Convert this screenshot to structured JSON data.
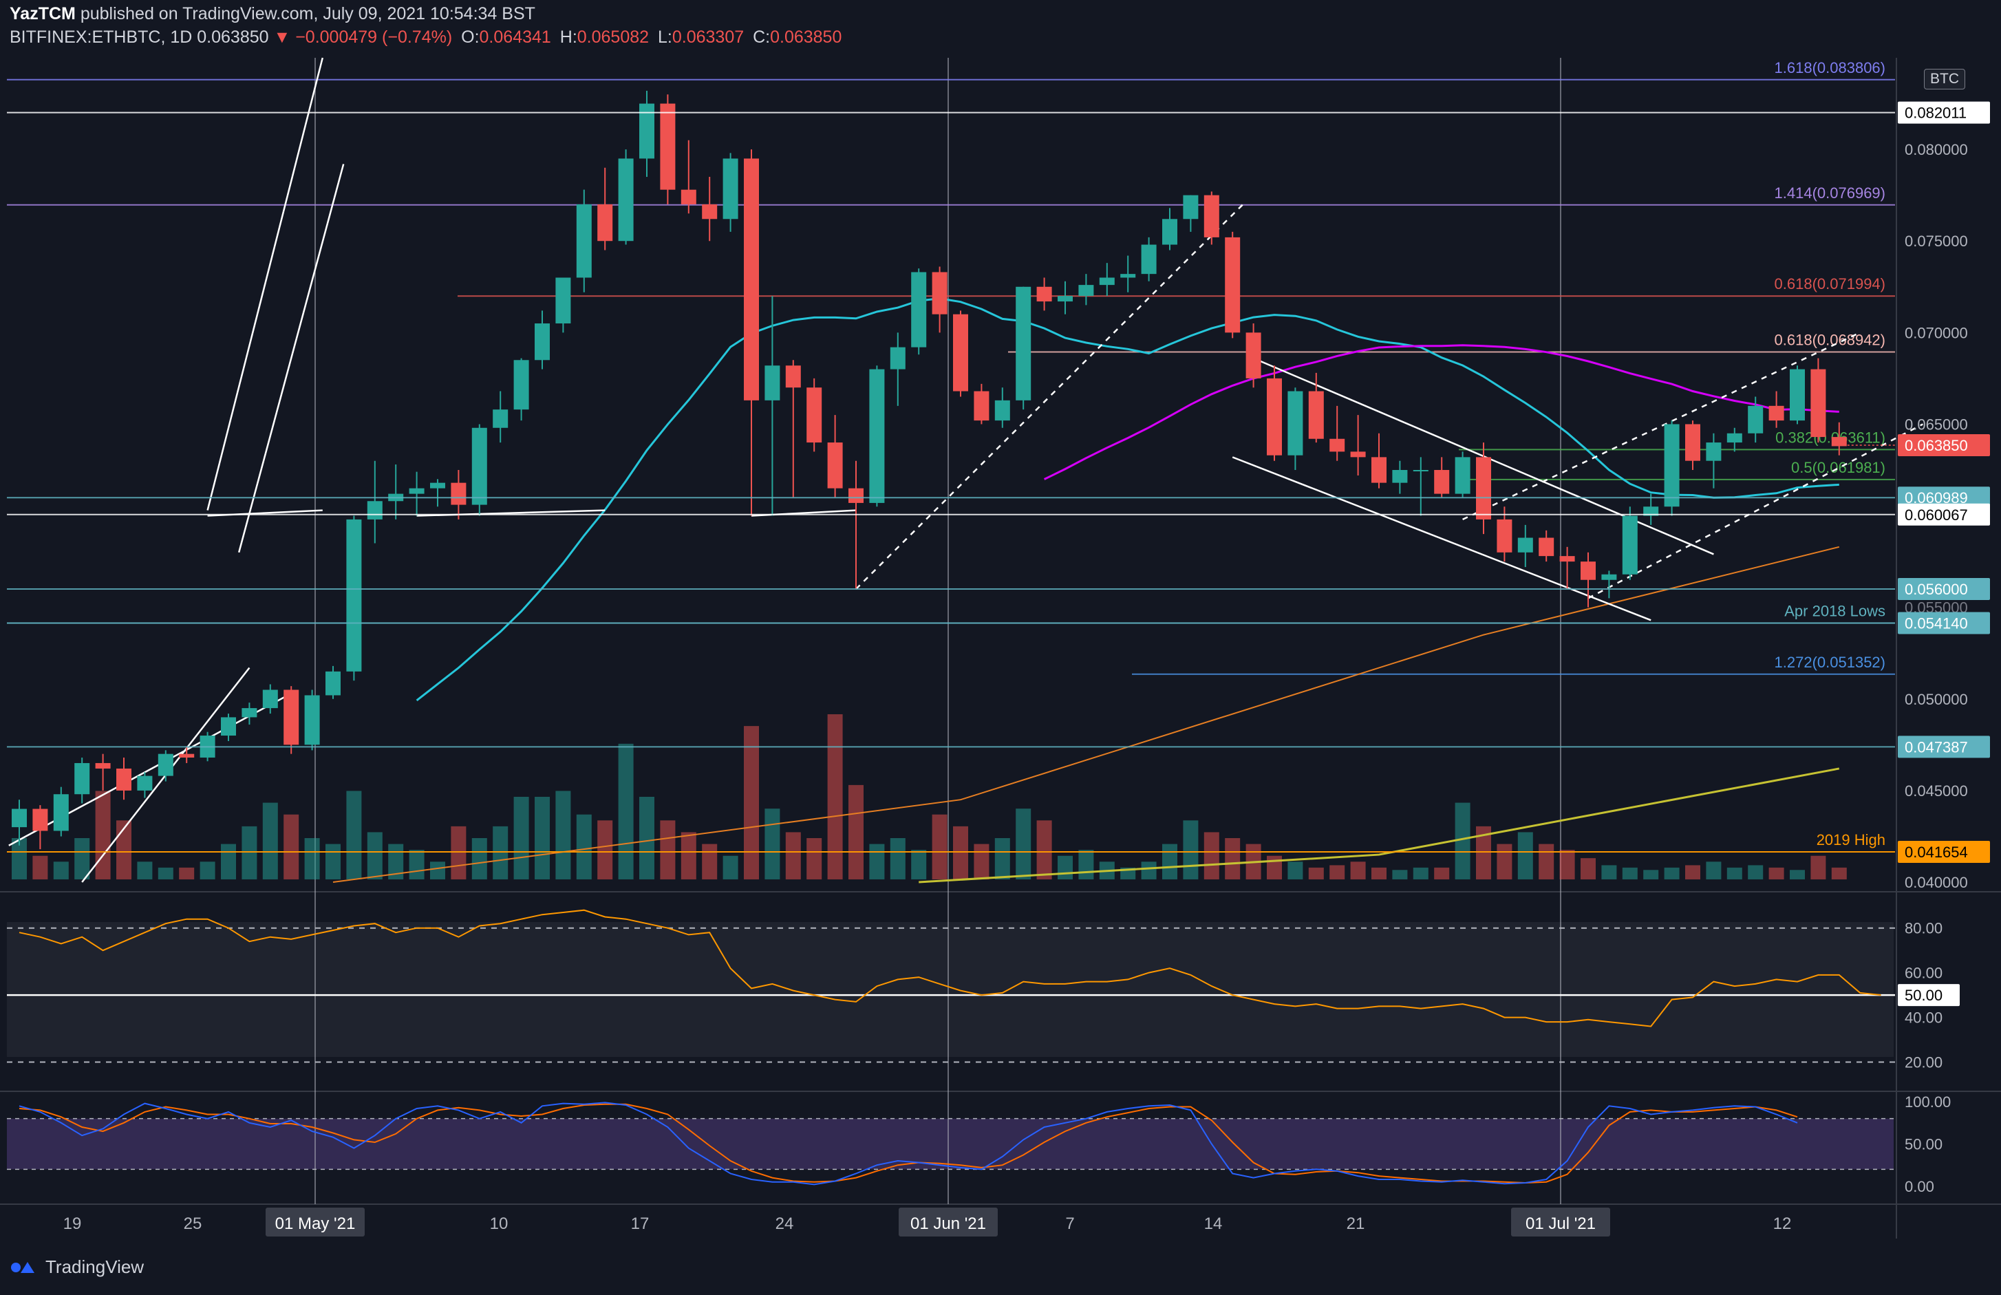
{
  "header": {
    "publisher_line": "YazTCM published on TradingView.com, July 09, 2021 10:54:34 BST",
    "author": "YazTCM",
    "published_rest": "published on TradingView.com, July 09, 2021 10:54:34 BST",
    "symbol": "BITFINEX:ETHBTC, 1D",
    "last": "0.063850",
    "change": "−0.000479 (−0.74%)",
    "o_label": "O:",
    "o": "0.064341",
    "h_label": "H:",
    "h": "0.065082",
    "l_label": "L:",
    "l": "0.063307",
    "c_label": "C:",
    "c": "0.063850"
  },
  "currency_badge": "BTC",
  "footer": {
    "brand": "TradingView"
  },
  "colors": {
    "background": "#131722",
    "up": "#26a69a",
    "down": "#ef5350",
    "grid": "#2a2e39",
    "ma_teal": "#26c6da",
    "ma_magenta": "#d500f9",
    "ma_orange": "#e67e22",
    "ma_yellow": "#c6c232",
    "rsi": "#ff9800",
    "stoch_k": "#2962ff",
    "stoch_d": "#ff6d00"
  },
  "chart_data": {
    "type": "candlestick",
    "symbol": "BITFINEX:ETHBTC",
    "interval": "1D",
    "price_axis_labels": [
      "0.080000",
      "0.075000",
      "0.070000",
      "0.065000",
      "0.050000",
      "0.045000",
      "0.040000"
    ],
    "date_axis_labels": [
      "19",
      "25",
      "01 May '21",
      "10",
      "17",
      "24",
      "01 Jun '21",
      "7",
      "14",
      "21",
      "01 Jul '21",
      "12"
    ],
    "ylim": [
      0.04,
      0.085
    ],
    "candles": [
      {
        "o": 0.043,
        "h": 0.0445,
        "l": 0.042,
        "c": 0.044
      },
      {
        "o": 0.044,
        "h": 0.0442,
        "l": 0.0418,
        "c": 0.0428
      },
      {
        "o": 0.0428,
        "h": 0.0452,
        "l": 0.0425,
        "c": 0.0448
      },
      {
        "o": 0.0448,
        "h": 0.0468,
        "l": 0.0443,
        "c": 0.0465
      },
      {
        "o": 0.0465,
        "h": 0.047,
        "l": 0.045,
        "c": 0.0462
      },
      {
        "o": 0.0462,
        "h": 0.0468,
        "l": 0.0445,
        "c": 0.045
      },
      {
        "o": 0.045,
        "h": 0.046,
        "l": 0.0446,
        "c": 0.0458
      },
      {
        "o": 0.0458,
        "h": 0.0472,
        "l": 0.0455,
        "c": 0.047
      },
      {
        "o": 0.047,
        "h": 0.0474,
        "l": 0.0465,
        "c": 0.0468
      },
      {
        "o": 0.0468,
        "h": 0.0482,
        "l": 0.0466,
        "c": 0.048
      },
      {
        "o": 0.048,
        "h": 0.0492,
        "l": 0.0477,
        "c": 0.049
      },
      {
        "o": 0.049,
        "h": 0.0498,
        "l": 0.0486,
        "c": 0.0495
      },
      {
        "o": 0.0495,
        "h": 0.0508,
        "l": 0.0492,
        "c": 0.0505
      },
      {
        "o": 0.0505,
        "h": 0.0507,
        "l": 0.047,
        "c": 0.0475
      },
      {
        "o": 0.0475,
        "h": 0.0505,
        "l": 0.0472,
        "c": 0.0502
      },
      {
        "o": 0.0502,
        "h": 0.0518,
        "l": 0.05,
        "c": 0.0515
      },
      {
        "o": 0.0515,
        "h": 0.06,
        "l": 0.051,
        "c": 0.0598
      },
      {
        "o": 0.0598,
        "h": 0.063,
        "l": 0.0585,
        "c": 0.0608
      },
      {
        "o": 0.0608,
        "h": 0.0628,
        "l": 0.0598,
        "c": 0.0612
      },
      {
        "o": 0.0612,
        "h": 0.0624,
        "l": 0.06,
        "c": 0.0615
      },
      {
        "o": 0.0615,
        "h": 0.062,
        "l": 0.0605,
        "c": 0.0618
      },
      {
        "o": 0.0618,
        "h": 0.0625,
        "l": 0.0598,
        "c": 0.0606
      },
      {
        "o": 0.0606,
        "h": 0.065,
        "l": 0.06,
        "c": 0.0648
      },
      {
        "o": 0.0648,
        "h": 0.0668,
        "l": 0.064,
        "c": 0.0658
      },
      {
        "o": 0.0658,
        "h": 0.0686,
        "l": 0.0652,
        "c": 0.0685
      },
      {
        "o": 0.0685,
        "h": 0.0712,
        "l": 0.068,
        "c": 0.0705
      },
      {
        "o": 0.0705,
        "h": 0.073,
        "l": 0.07,
        "c": 0.073
      },
      {
        "o": 0.073,
        "h": 0.0778,
        "l": 0.0722,
        "c": 0.077
      },
      {
        "o": 0.077,
        "h": 0.079,
        "l": 0.0745,
        "c": 0.075
      },
      {
        "o": 0.075,
        "h": 0.08,
        "l": 0.0748,
        "c": 0.0795
      },
      {
        "o": 0.0795,
        "h": 0.0832,
        "l": 0.0785,
        "c": 0.0825
      },
      {
        "o": 0.0825,
        "h": 0.083,
        "l": 0.077,
        "c": 0.0778
      },
      {
        "o": 0.0778,
        "h": 0.0805,
        "l": 0.0765,
        "c": 0.077
      },
      {
        "o": 0.077,
        "h": 0.0785,
        "l": 0.075,
        "c": 0.0762
      },
      {
        "o": 0.0762,
        "h": 0.0798,
        "l": 0.0755,
        "c": 0.0795
      },
      {
        "o": 0.0795,
        "h": 0.08,
        "l": 0.06,
        "c": 0.0663
      },
      {
        "o": 0.0663,
        "h": 0.072,
        "l": 0.06,
        "c": 0.0682
      },
      {
        "o": 0.0682,
        "h": 0.0685,
        "l": 0.061,
        "c": 0.067
      },
      {
        "o": 0.067,
        "h": 0.0675,
        "l": 0.0635,
        "c": 0.064
      },
      {
        "o": 0.064,
        "h": 0.0655,
        "l": 0.061,
        "c": 0.0615
      },
      {
        "o": 0.0615,
        "h": 0.063,
        "l": 0.056,
        "c": 0.0607
      },
      {
        "o": 0.0607,
        "h": 0.0682,
        "l": 0.0605,
        "c": 0.068
      },
      {
        "o": 0.068,
        "h": 0.07,
        "l": 0.066,
        "c": 0.0692
      },
      {
        "o": 0.0692,
        "h": 0.0735,
        "l": 0.0688,
        "c": 0.0733
      },
      {
        "o": 0.0733,
        "h": 0.0736,
        "l": 0.07,
        "c": 0.071
      },
      {
        "o": 0.071,
        "h": 0.0712,
        "l": 0.0665,
        "c": 0.0668
      },
      {
        "o": 0.0668,
        "h": 0.0672,
        "l": 0.065,
        "c": 0.0652
      },
      {
        "o": 0.0652,
        "h": 0.067,
        "l": 0.0648,
        "c": 0.0663
      },
      {
        "o": 0.0663,
        "h": 0.0725,
        "l": 0.0658,
        "c": 0.0725
      },
      {
        "o": 0.0725,
        "h": 0.073,
        "l": 0.0712,
        "c": 0.0717
      },
      {
        "o": 0.0717,
        "h": 0.0728,
        "l": 0.071,
        "c": 0.072
      },
      {
        "o": 0.072,
        "h": 0.0732,
        "l": 0.0715,
        "c": 0.0726
      },
      {
        "o": 0.0726,
        "h": 0.0738,
        "l": 0.072,
        "c": 0.073
      },
      {
        "o": 0.073,
        "h": 0.0742,
        "l": 0.0722,
        "c": 0.0732
      },
      {
        "o": 0.0732,
        "h": 0.0752,
        "l": 0.0728,
        "c": 0.0748
      },
      {
        "o": 0.0748,
        "h": 0.0768,
        "l": 0.0745,
        "c": 0.0762
      },
      {
        "o": 0.0762,
        "h": 0.0775,
        "l": 0.0755,
        "c": 0.0775
      },
      {
        "o": 0.0775,
        "h": 0.0777,
        "l": 0.0748,
        "c": 0.0752
      },
      {
        "o": 0.0752,
        "h": 0.0755,
        "l": 0.0697,
        "c": 0.07
      },
      {
        "o": 0.07,
        "h": 0.0705,
        "l": 0.067,
        "c": 0.0675
      },
      {
        "o": 0.0675,
        "h": 0.0682,
        "l": 0.063,
        "c": 0.0633
      },
      {
        "o": 0.0633,
        "h": 0.067,
        "l": 0.0625,
        "c": 0.0668
      },
      {
        "o": 0.0668,
        "h": 0.0678,
        "l": 0.064,
        "c": 0.0642
      },
      {
        "o": 0.0642,
        "h": 0.066,
        "l": 0.063,
        "c": 0.0635
      },
      {
        "o": 0.0635,
        "h": 0.0655,
        "l": 0.0622,
        "c": 0.0632
      },
      {
        "o": 0.0632,
        "h": 0.0645,
        "l": 0.0615,
        "c": 0.0618
      },
      {
        "o": 0.0618,
        "h": 0.063,
        "l": 0.0612,
        "c": 0.0625
      },
      {
        "o": 0.0625,
        "h": 0.0632,
        "l": 0.06,
        "c": 0.0625
      },
      {
        "o": 0.0625,
        "h": 0.0632,
        "l": 0.061,
        "c": 0.0612
      },
      {
        "o": 0.0612,
        "h": 0.0635,
        "l": 0.061,
        "c": 0.0632
      },
      {
        "o": 0.0632,
        "h": 0.064,
        "l": 0.059,
        "c": 0.0598
      },
      {
        "o": 0.0598,
        "h": 0.0605,
        "l": 0.0575,
        "c": 0.058
      },
      {
        "o": 0.058,
        "h": 0.0595,
        "l": 0.0572,
        "c": 0.0588
      },
      {
        "o": 0.0588,
        "h": 0.0592,
        "l": 0.0575,
        "c": 0.0578
      },
      {
        "o": 0.0578,
        "h": 0.0583,
        "l": 0.056,
        "c": 0.0575
      },
      {
        "o": 0.0575,
        "h": 0.058,
        "l": 0.055,
        "c": 0.0565
      },
      {
        "o": 0.0565,
        "h": 0.057,
        "l": 0.0555,
        "c": 0.0568
      },
      {
        "o": 0.0568,
        "h": 0.0605,
        "l": 0.0565,
        "c": 0.06
      },
      {
        "o": 0.06,
        "h": 0.0612,
        "l": 0.0595,
        "c": 0.0605
      },
      {
        "o": 0.0605,
        "h": 0.0652,
        "l": 0.06,
        "c": 0.065
      },
      {
        "o": 0.065,
        "h": 0.0652,
        "l": 0.0625,
        "c": 0.063
      },
      {
        "o": 0.063,
        "h": 0.0645,
        "l": 0.0615,
        "c": 0.064
      },
      {
        "o": 0.064,
        "h": 0.0648,
        "l": 0.0635,
        "c": 0.0645
      },
      {
        "o": 0.0645,
        "h": 0.0665,
        "l": 0.064,
        "c": 0.066
      },
      {
        "o": 0.066,
        "h": 0.0668,
        "l": 0.0648,
        "c": 0.0652
      },
      {
        "o": 0.0652,
        "h": 0.0682,
        "l": 0.065,
        "c": 0.068
      },
      {
        "o": 0.068,
        "h": 0.0686,
        "l": 0.064,
        "c": 0.0643
      },
      {
        "o": 0.0643,
        "h": 0.0651,
        "l": 0.0633,
        "c": 0.0638
      }
    ],
    "volume_relative": [
      0.35,
      0.2,
      0.15,
      0.35,
      0.75,
      0.5,
      0.15,
      0.1,
      0.1,
      0.15,
      0.3,
      0.45,
      0.65,
      0.55,
      0.35,
      0.3,
      0.75,
      0.4,
      0.3,
      0.25,
      0.15,
      0.45,
      0.35,
      0.45,
      0.7,
      0.7,
      0.75,
      0.55,
      0.5,
      1.15,
      0.7,
      0.5,
      0.4,
      0.3,
      0.2,
      1.3,
      0.6,
      0.4,
      0.35,
      1.4,
      0.8,
      0.3,
      0.35,
      0.25,
      0.55,
      0.45,
      0.3,
      0.35,
      0.6,
      0.5,
      0.2,
      0.25,
      0.15,
      0.1,
      0.15,
      0.3,
      0.5,
      0.4,
      0.35,
      0.3,
      0.2,
      0.15,
      0.1,
      0.12,
      0.15,
      0.1,
      0.08,
      0.1,
      0.1,
      0.65,
      0.45,
      0.3,
      0.4,
      0.3,
      0.25,
      0.18,
      0.12,
      0.1,
      0.08,
      0.1,
      0.12,
      0.15,
      0.1,
      0.12,
      0.1,
      0.08,
      0.2,
      0.1,
      0.05
    ],
    "horizontal_levels": [
      {
        "label": "1.618(0.083806)",
        "value": 0.083806,
        "color": "#7e7ef0",
        "axis_tag": false
      },
      {
        "label": "0.082011",
        "value": 0.082011,
        "color": "#ffffff",
        "axis_tag": true
      },
      {
        "label": "1.414(0.076969)",
        "value": 0.076969,
        "color": "#a685e2",
        "axis_tag": false
      },
      {
        "label": "0.618(0.071994)",
        "value": 0.071994,
        "color": "#d9534f",
        "axis_tag": false
      },
      {
        "label": "0.618(0.068942)",
        "value": 0.068942,
        "color": "#f5b7b1",
        "axis_tag": false
      },
      {
        "label": "0.382(0.063611)",
        "value": 0.063611,
        "color": "#4caf50",
        "axis_tag": false
      },
      {
        "label": "0.5(0.061981)",
        "value": 0.061981,
        "color": "#4caf50",
        "axis_tag": false
      },
      {
        "label": "0.060989",
        "value": 0.060989,
        "color": "#5fb2bf",
        "axis_tag": true
      },
      {
        "label": "0.060067",
        "value": 0.060067,
        "color": "#ffffff",
        "axis_tag": true
      },
      {
        "label": "0.056000",
        "value": 0.056,
        "color": "#5fb2bf",
        "axis_tag": true
      },
      {
        "label": "0.055000",
        "value": 0.055,
        "color": "#787b86",
        "axis_tag": false
      },
      {
        "label": "Apr 2018 Lows",
        "value": 0.05414,
        "color": "#5fb2bf",
        "axis_tag": false
      },
      {
        "label": "0.054140",
        "value": 0.05414,
        "color": "#5fb2bf",
        "axis_tag": true
      },
      {
        "label": "1.272(0.051352)",
        "value": 0.051352,
        "color": "#4a90e2",
        "axis_tag": false
      },
      {
        "label": "0.047387",
        "value": 0.047387,
        "color": "#5fb2bf",
        "axis_tag": true
      },
      {
        "label": "2019 High",
        "value": 0.041654,
        "color": "#ff9800",
        "axis_tag": false
      },
      {
        "label": "0.041654",
        "value": 0.041654,
        "color": "#ff9800",
        "axis_tag": true
      }
    ],
    "current_price_tag": {
      "label": "0.063850",
      "value": 0.06385,
      "color": "#ef5350"
    },
    "rsi": {
      "axis_labels": [
        "80.00",
        "60.00",
        "50.00",
        "40.00",
        "20.00"
      ],
      "ylim": [
        10,
        95
      ],
      "bands": [
        80,
        20
      ],
      "midline": 50,
      "values": [
        78,
        76,
        73,
        76,
        70,
        74,
        78,
        82,
        84,
        84,
        80,
        74,
        76,
        75,
        77,
        79,
        81,
        82,
        78,
        80,
        80,
        76,
        81,
        82,
        84,
        86,
        87,
        88,
        85,
        84,
        82,
        80,
        77,
        78,
        62,
        53,
        55,
        52,
        50,
        48,
        47,
        54,
        57,
        58,
        55,
        52,
        50,
        51,
        56,
        55,
        55,
        56,
        56,
        57,
        60,
        62,
        59,
        54,
        50,
        48,
        46,
        45,
        46,
        44,
        44,
        45,
        45,
        44,
        45,
        46,
        44,
        40,
        40,
        38,
        38,
        39,
        38,
        37,
        36,
        48,
        49,
        56,
        54,
        55,
        57,
        56,
        59,
        59,
        51,
        50
      ]
    },
    "stoch_rsi": {
      "axis_labels": [
        "100.00",
        "50.00",
        "0.00"
      ],
      "ylim": [
        -5,
        105
      ],
      "bands": [
        80,
        20
      ],
      "k": [
        95,
        88,
        75,
        60,
        68,
        85,
        98,
        92,
        85,
        80,
        88,
        75,
        70,
        78,
        65,
        58,
        45,
        60,
        80,
        92,
        95,
        90,
        80,
        88,
        75,
        95,
        98,
        97,
        99,
        96,
        85,
        70,
        45,
        30,
        15,
        8,
        5,
        5,
        2,
        6,
        15,
        25,
        30,
        28,
        25,
        22,
        20,
        35,
        55,
        70,
        75,
        80,
        88,
        92,
        95,
        96,
        90,
        50,
        15,
        10,
        15,
        18,
        20,
        18,
        12,
        8,
        8,
        6,
        5,
        7,
        5,
        3,
        4,
        8,
        30,
        70,
        95,
        92,
        85,
        88,
        90,
        93,
        95,
        94,
        85,
        75
      ],
      "d": [
        92,
        90,
        82,
        70,
        65,
        75,
        88,
        94,
        90,
        85,
        85,
        80,
        74,
        74,
        70,
        63,
        55,
        52,
        62,
        80,
        90,
        93,
        90,
        85,
        83,
        85,
        92,
        96,
        97,
        97,
        92,
        85,
        67,
        48,
        30,
        18,
        10,
        6,
        5,
        6,
        10,
        18,
        25,
        28,
        27,
        25,
        22,
        25,
        37,
        52,
        65,
        75,
        82,
        87,
        92,
        94,
        94,
        78,
        52,
        28,
        15,
        14,
        17,
        18,
        16,
        12,
        10,
        8,
        6,
        6,
        6,
        5,
        4,
        5,
        14,
        40,
        72,
        88,
        90,
        88,
        88,
        90,
        92,
        94,
        90,
        82
      ]
    }
  }
}
